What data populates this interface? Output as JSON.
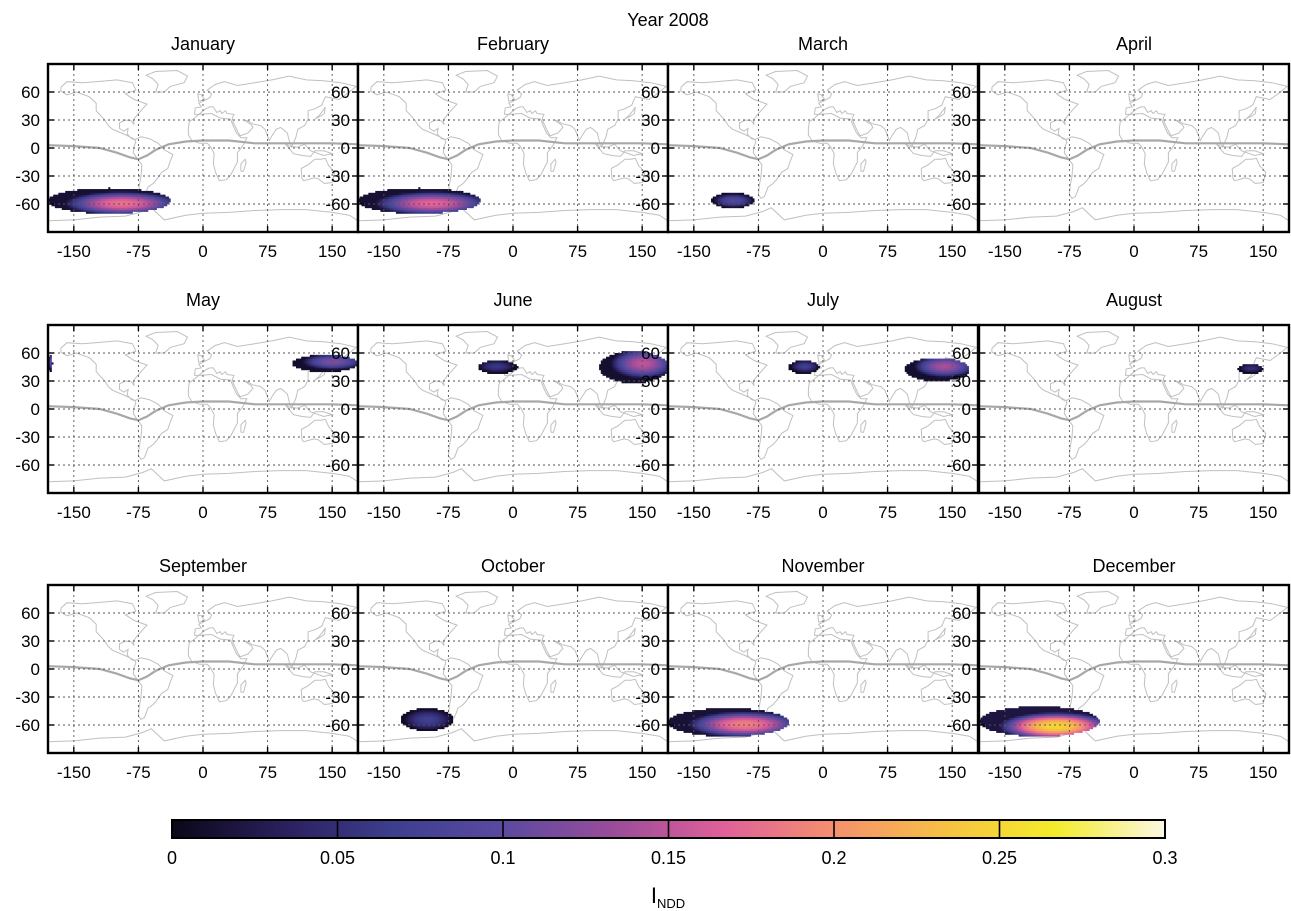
{
  "figure": {
    "title": "Year 2008",
    "colorbar_label_main": "I",
    "colorbar_label_sub": "NDD"
  },
  "colors": {
    "axes": "#000000",
    "coastline": "#c0c0c0",
    "itcz_line": "#a8a8a8",
    "grid": "#555555",
    "background": "#ffffff"
  },
  "colorbar": {
    "colormap": "plasma-like (dark navy → purple → pink → orange → yellow → cream)",
    "range": [
      0,
      0.3
    ],
    "ticks": [
      "0",
      "0.05",
      "0.1",
      "0.15",
      "0.2",
      "0.25",
      "0.3"
    ],
    "stops": [
      "#0b0718",
      "#2a1f5c",
      "#3d3e8e",
      "#5a4aa0",
      "#9a4c9a",
      "#e0609a",
      "#f4906e",
      "#f7c043",
      "#f3ec2a",
      "#fbf7e4"
    ]
  },
  "axes": {
    "x_ticks": [
      -150,
      -75,
      0,
      75,
      150
    ],
    "x_tick_labels": [
      "-150",
      "-75",
      "0",
      "75",
      "150"
    ],
    "y_ticks": [
      60,
      30,
      0,
      -30,
      -60
    ],
    "y_tick_labels": [
      "60",
      "30",
      "0",
      "-30",
      "-60"
    ],
    "xlim": [
      -180,
      180
    ],
    "ylim": [
      -90,
      90
    ],
    "grid": true,
    "grid_style": "dotted"
  },
  "chart_data": {
    "type": "heatmap",
    "title": "Year 2008",
    "xlabel": "",
    "ylabel": "",
    "colorbar_label": "I_NDD",
    "months": [
      {
        "name": "January",
        "blobs": [
          {
            "lon": [
              -180,
              -38
            ],
            "lat": [
              -70,
              -43
            ],
            "peak": 0.18,
            "center": [
              -95,
              -60
            ]
          }
        ]
      },
      {
        "name": "February",
        "blobs": [
          {
            "lon": [
              -180,
              -38
            ],
            "lat": [
              -70,
              -43
            ],
            "peak": 0.17,
            "center": [
              -95,
              -60
            ]
          }
        ]
      },
      {
        "name": "March",
        "blobs": [
          {
            "lon": [
              -130,
              -80
            ],
            "lat": [
              -64,
              -48
            ],
            "peak": 0.09,
            "center": [
              -105,
              -57
            ]
          }
        ]
      },
      {
        "name": "April",
        "blobs": []
      },
      {
        "name": "May",
        "blobs": [
          {
            "lon": [
              104,
              180
            ],
            "lat": [
              40,
              58
            ],
            "peak": 0.12,
            "center": [
              150,
              50
            ]
          },
          {
            "lon": [
              -180,
              -175
            ],
            "lat": [
              40,
              58
            ],
            "peak": 0.1,
            "center": [
              -178,
              50
            ]
          }
        ]
      },
      {
        "name": "June",
        "blobs": [
          {
            "lon": [
              -40,
              5
            ],
            "lat": [
              38,
              52
            ],
            "peak": 0.06,
            "center": [
              -20,
              45
            ]
          },
          {
            "lon": [
              100,
              180
            ],
            "lat": [
              28,
              62
            ],
            "peak": 0.15,
            "center": [
              150,
              48
            ]
          }
        ]
      },
      {
        "name": "July",
        "blobs": [
          {
            "lon": [
              -40,
              -5
            ],
            "lat": [
              38,
              52
            ],
            "peak": 0.07,
            "center": [
              -22,
              45
            ]
          },
          {
            "lon": [
              95,
              170
            ],
            "lat": [
              30,
              55
            ],
            "peak": 0.14,
            "center": [
              140,
              45
            ]
          }
        ]
      },
      {
        "name": "August",
        "blobs": [
          {
            "lon": [
              120,
              150
            ],
            "lat": [
              38,
              48
            ],
            "peak": 0.05,
            "center": [
              135,
              43
            ]
          }
        ]
      },
      {
        "name": "September",
        "blobs": []
      },
      {
        "name": "October",
        "blobs": [
          {
            "lon": [
              -130,
              -70
            ],
            "lat": [
              -66,
              -42
            ],
            "peak": 0.07,
            "center": [
              -100,
              -55
            ]
          }
        ]
      },
      {
        "name": "November",
        "blobs": [
          {
            "lon": [
              -180,
              -40
            ],
            "lat": [
              -72,
              -42
            ],
            "peak": 0.19,
            "center": [
              -92,
              -60
            ]
          }
        ]
      },
      {
        "name": "December",
        "blobs": [
          {
            "lon": [
              -180,
              -40
            ],
            "lat": [
              -72,
              -40
            ],
            "peak": 0.25,
            "center": [
              -92,
              -62
            ]
          }
        ]
      }
    ]
  }
}
